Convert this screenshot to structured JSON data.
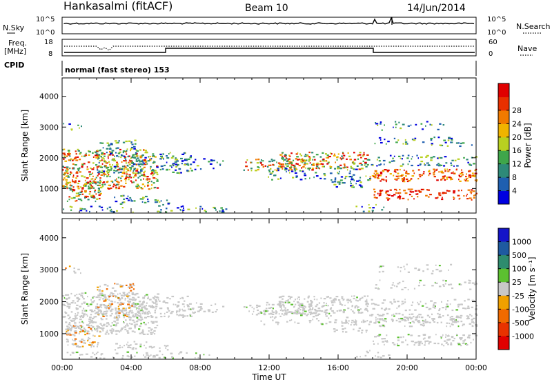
{
  "header": {
    "site": "Hankasalmi (fitACF)",
    "beam": "Beam 10",
    "date": "14/Jun/2014"
  },
  "side_labels": {
    "nsky": "N.Sky",
    "freq_line1": "Freq.",
    "freq_line2": "[MHz]",
    "cpid": "CPID",
    "nsearch": "N.Search",
    "nave": "Nave",
    "nsky_ticks": [
      "10^5",
      "10^0"
    ],
    "nsearch_ticks": [
      "10^5",
      "10^0"
    ],
    "freq_ticks": [
      "18",
      "8"
    ],
    "nave_ticks": [
      "60",
      "0"
    ]
  },
  "cpid_text": "normal (fast stereo) 153",
  "chart_data": [
    {
      "type": "heatmap",
      "name": "power",
      "ylabel": "Slant Range [km]",
      "y_ticks": [
        "1000",
        "2000",
        "3000",
        "4000"
      ],
      "y_tick_values": [
        1000,
        2000,
        3000,
        4000
      ],
      "ylim": [
        200,
        4600
      ],
      "x_ticks": [
        "00:00",
        "04:00",
        "08:00",
        "12:00",
        "16:00",
        "20:00",
        "00:00"
      ],
      "colorbar": {
        "label": "Power [dB]",
        "ticks": [
          "4",
          "8",
          "12",
          "16",
          "20",
          "24",
          "28"
        ],
        "colors": [
          "#0000e0",
          "#1f5fb0",
          "#2e8a78",
          "#3fa64a",
          "#b8d020",
          "#f0b400",
          "#f07a00",
          "#e83000",
          "#e00000"
        ]
      }
    },
    {
      "type": "heatmap",
      "name": "velocity",
      "ylabel": "Slant Range [km]",
      "y_ticks": [
        "1000",
        "2000",
        "3000",
        "4000"
      ],
      "y_tick_values": [
        1000,
        2000,
        3000,
        4000
      ],
      "ylim": [
        200,
        4600
      ],
      "x_ticks": [
        "00:00",
        "04:00",
        "08:00",
        "12:00",
        "16:00",
        "20:00",
        "00:00"
      ],
      "xlabel": "Time UT",
      "colorbar": {
        "label": "Velocity [m s⁻¹]",
        "ticks": [
          "1000",
          "500",
          "100",
          "25",
          "-25",
          "-100",
          "-500",
          "-1000"
        ],
        "colors": [
          "#1414c8",
          "#1e5aa0",
          "#2e8c6e",
          "#5cc030",
          "#c8c8c8",
          "#f0a000",
          "#f06a00",
          "#e83200",
          "#e00000"
        ]
      }
    }
  ]
}
